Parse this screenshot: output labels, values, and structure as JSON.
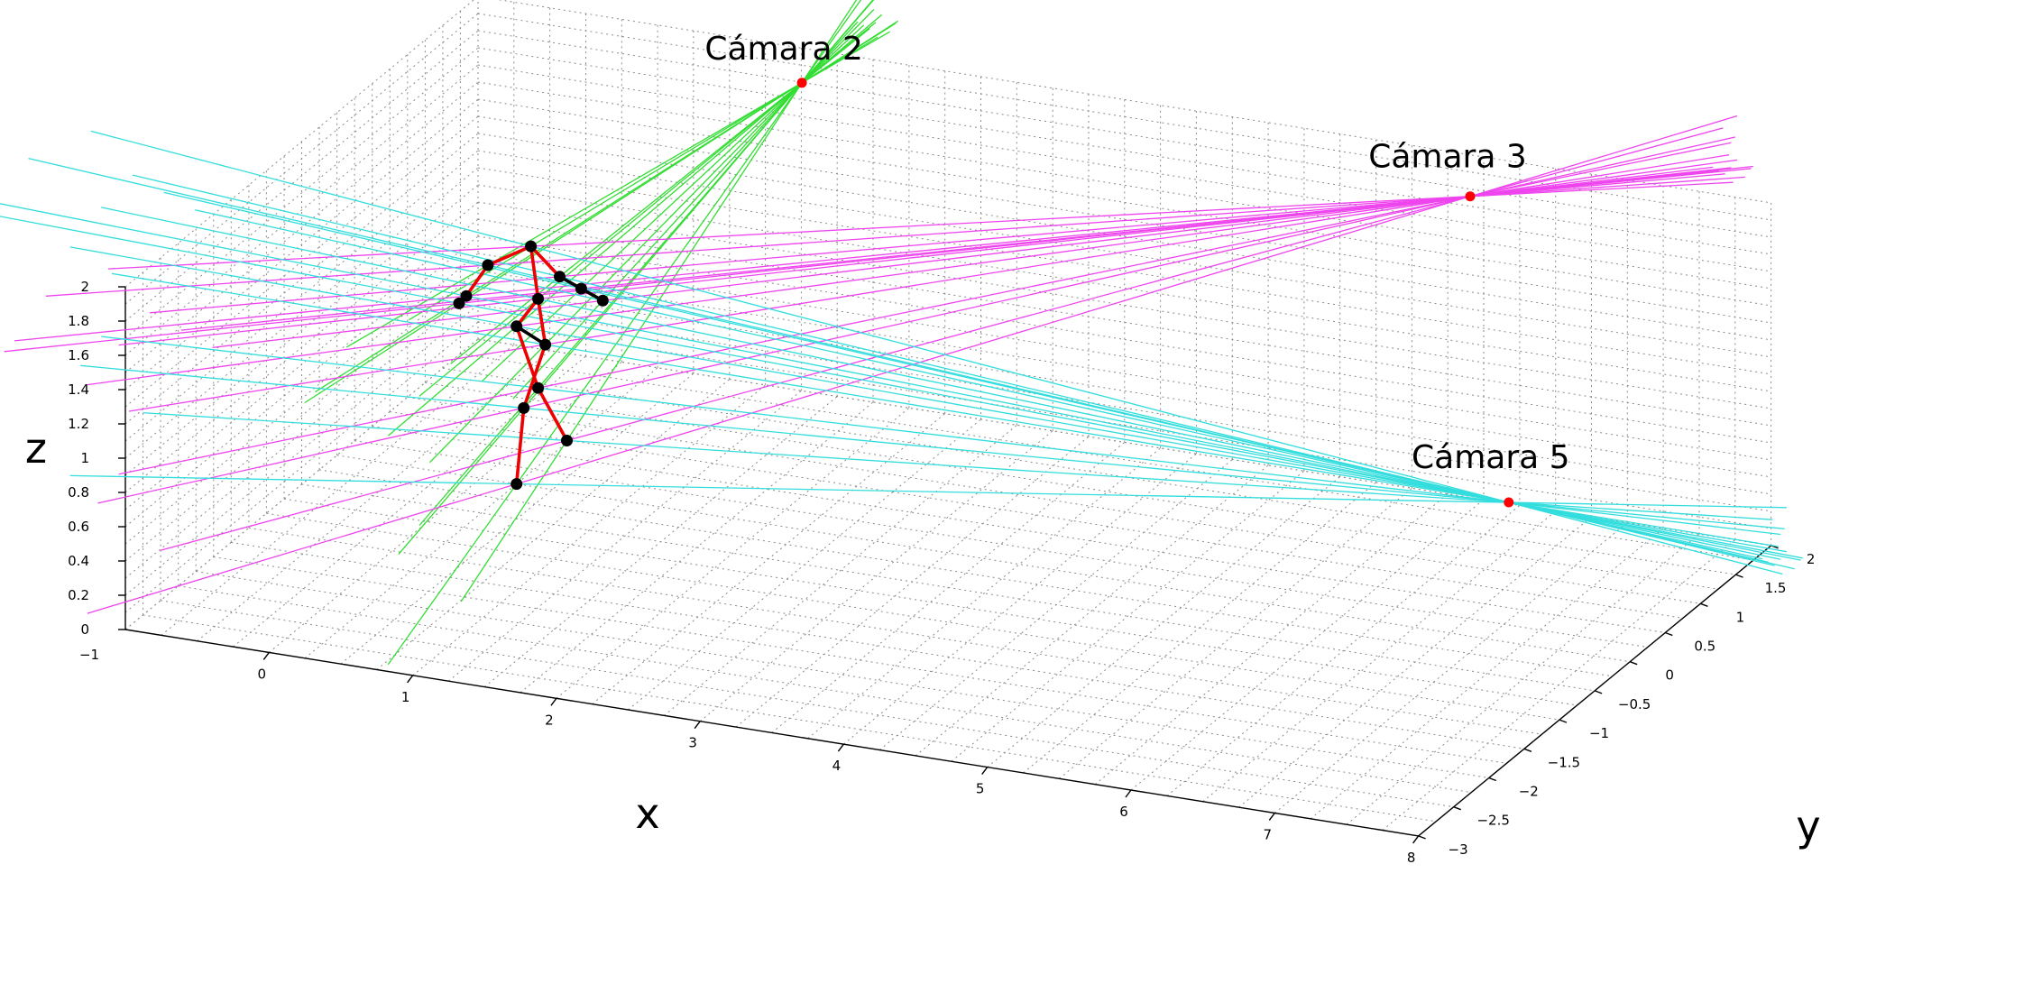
{
  "chart_data": {
    "type": "3d-line",
    "title": "",
    "xlabel": "x",
    "ylabel": "y",
    "zlabel": "z",
    "xlim": [
      -1,
      8
    ],
    "ylim": [
      -3,
      2
    ],
    "zlim": [
      0,
      2
    ],
    "grid": true,
    "x_ticks": [
      "0",
      "1",
      "2",
      "3",
      "4",
      "5",
      "6",
      "7",
      "8"
    ],
    "y_ticks": [
      "−3",
      "−2.5",
      "−2",
      "−1.5",
      "−1",
      "−0.5",
      "0",
      "0.5",
      "1",
      "1.5",
      "2"
    ],
    "z_ticks": [
      "0",
      "0.2",
      "0.4",
      "0.6",
      "0.8",
      "1",
      "1.2",
      "1.4",
      "1.6",
      "1.8",
      "2"
    ],
    "extra_x_tick": "−1",
    "cameras": [
      {
        "name": "Cámara 2",
        "position": [
          1.5,
          1.5,
          2.0
        ],
        "color": "#33dd33"
      },
      {
        "name": "Cámara 3",
        "position": [
          6.2,
          1.4,
          2.0
        ],
        "color": "#ee44ee"
      },
      {
        "name": "Cámara 5",
        "position": [
          7.5,
          -0.7,
          1.1
        ],
        "color": "#33dddd"
      }
    ],
    "skeleton": {
      "joints": [
        [
          0.35,
          0.0,
          1.4
        ],
        [
          0.05,
          0.0,
          1.25
        ],
        [
          -0.1,
          0.0,
          1.05
        ],
        [
          -0.15,
          0.0,
          1.0
        ],
        [
          0.55,
          0.0,
          1.25
        ],
        [
          0.7,
          0.0,
          1.2
        ],
        [
          0.85,
          0.0,
          1.15
        ],
        [
          0.4,
          0.0,
          1.1
        ],
        [
          0.25,
          0.0,
          0.92
        ],
        [
          0.45,
          0.0,
          0.84
        ],
        [
          0.4,
          0.0,
          0.58
        ],
        [
          0.3,
          0.0,
          0.45
        ],
        [
          0.6,
          0.0,
          0.3
        ],
        [
          0.25,
          0.0,
          0.0
        ]
      ],
      "bones": [
        {
          "from": 0,
          "to": 1,
          "color": "#ee0000"
        },
        {
          "from": 1,
          "to": 2,
          "color": "#ee0000"
        },
        {
          "from": 2,
          "to": 3,
          "color": "#ee0000"
        },
        {
          "from": 0,
          "to": 4,
          "color": "#ee0000"
        },
        {
          "from": 4,
          "to": 5,
          "color": "#000000"
        },
        {
          "from": 5,
          "to": 6,
          "color": "#000000"
        },
        {
          "from": 0,
          "to": 7,
          "color": "#ee0000"
        },
        {
          "from": 7,
          "to": 8,
          "color": "#ee0000"
        },
        {
          "from": 7,
          "to": 9,
          "color": "#ee0000"
        },
        {
          "from": 8,
          "to": 9,
          "color": "#000000"
        },
        {
          "from": 8,
          "to": 10,
          "color": "#ee0000"
        },
        {
          "from": 10,
          "to": 12,
          "color": "#ee0000"
        },
        {
          "from": 9,
          "to": 11,
          "color": "#ee0000"
        },
        {
          "from": 11,
          "to": 13,
          "color": "#ee0000"
        }
      ],
      "joint_color": "#000000",
      "bone_color": "#ee0000"
    },
    "camera_point_color": "#ff0000"
  }
}
